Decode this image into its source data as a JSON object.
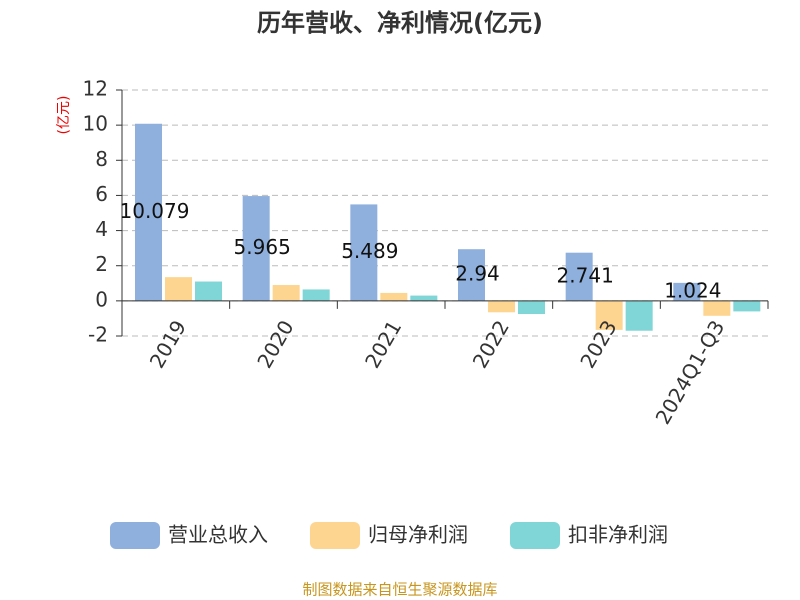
{
  "chart_data": {
    "type": "bar",
    "title": "历年营收、净利情况(亿元)",
    "y_label": "(亿元)",
    "categories": [
      "2019",
      "2020",
      "2021",
      "2022",
      "2023",
      "2024Q1-Q3"
    ],
    "series": [
      {
        "name": "营业总收入",
        "color": "#8fb0dd",
        "values": [
          10.079,
          5.965,
          5.489,
          2.94,
          2.741,
          1.024
        ]
      },
      {
        "name": "归母净利润",
        "color": "#fdd590",
        "values": [
          1.35,
          0.9,
          0.45,
          -0.65,
          -1.65,
          -0.85
        ]
      },
      {
        "name": "扣非净利润",
        "color": "#80d5d6",
        "values": [
          1.1,
          0.65,
          0.3,
          -0.75,
          -1.7,
          -0.6
        ]
      }
    ],
    "ylim": [
      -2,
      12
    ],
    "yticks": [
      -2,
      0,
      2,
      4,
      6,
      8,
      10,
      12
    ],
    "grid": true,
    "source": "制图数据来自恒生聚源数据库"
  }
}
